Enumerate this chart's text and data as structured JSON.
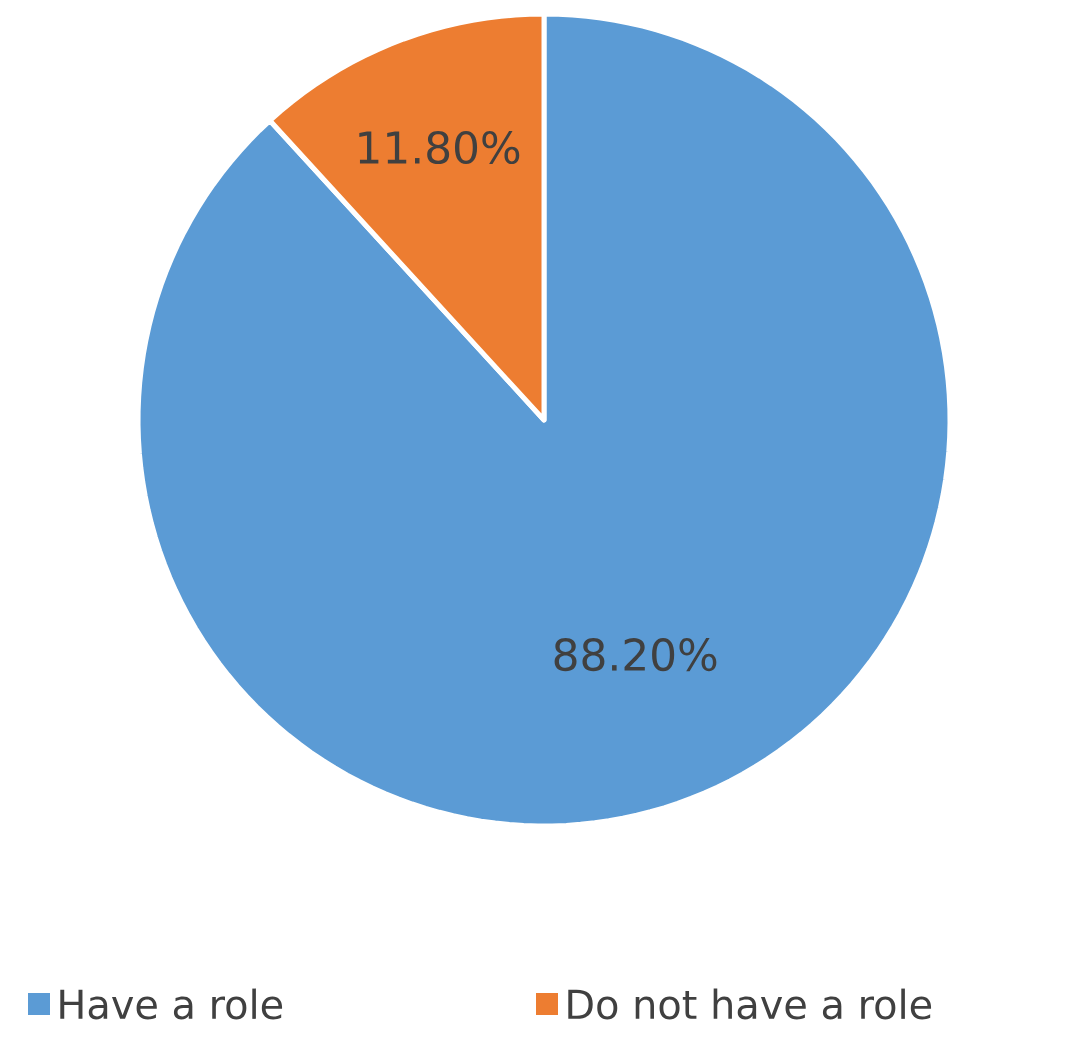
{
  "chart_data": {
    "type": "pie",
    "categories": [
      "Have a role",
      "Do not have a role"
    ],
    "values": [
      88.2,
      11.8
    ],
    "colors": [
      "#5b9bd5",
      "#ed7d31"
    ],
    "value_labels": [
      "88.20%",
      "11.80%"
    ],
    "legend": "bottom"
  }
}
